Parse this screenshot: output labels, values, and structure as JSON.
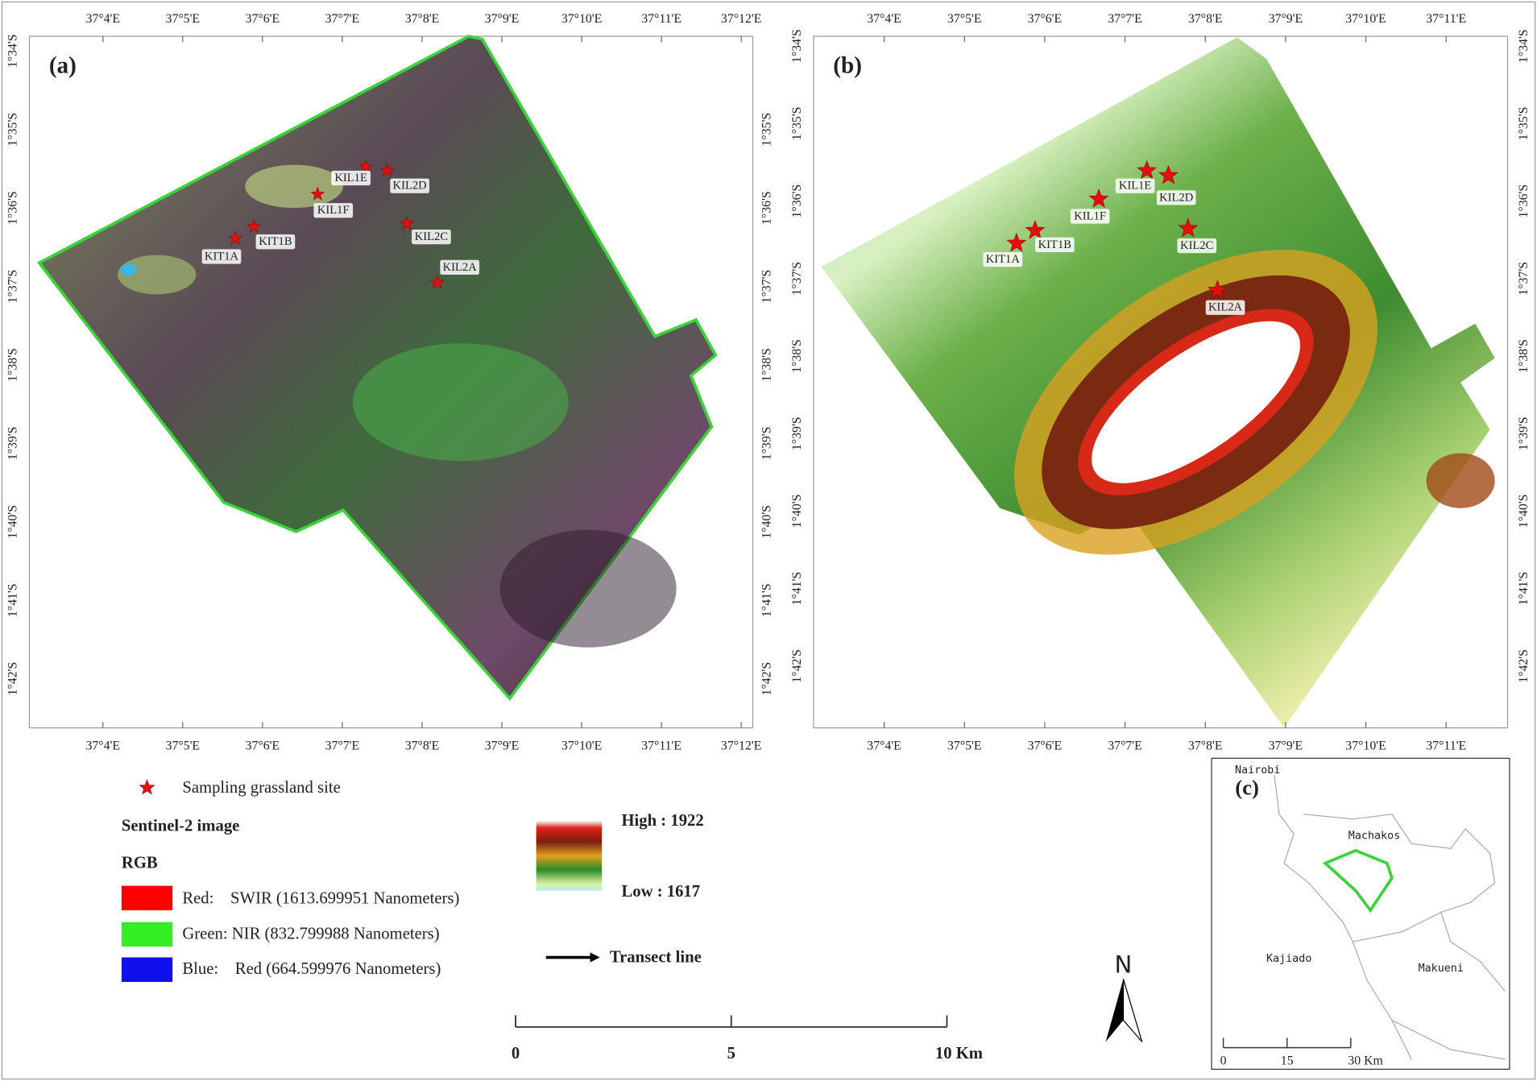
{
  "panels": [
    {
      "label": "(a)",
      "lon_ticks": [
        "37°4'E",
        "37°5'E",
        "37°6'E",
        "37°7'E",
        "37°8'E",
        "37°9'E",
        "37°10'E",
        "37°11'E",
        "37°12'E"
      ],
      "lat_ticks_left": [
        "1°34'S",
        "1°35'S",
        "1°36'S",
        "1°37'S",
        "1°38'S",
        "1°39'S",
        "1°40'S",
        "1°41'S",
        "1°42'S"
      ],
      "lat_ticks_right": [
        "1°35'S",
        "1°36'S",
        "1°37'S",
        "1°38'S",
        "1°39'S",
        "1°40'S",
        "1°41'S",
        "1°42'S"
      ]
    },
    {
      "label": "(b)",
      "lon_ticks": [
        "37°4'E",
        "37°5'E",
        "37°6'E",
        "37°7'E",
        "37°8'E",
        "37°9'E",
        "37°10'E",
        "37°11'E"
      ],
      "lat_ticks_left": [
        "1°34'S",
        "1°35'S",
        "1°36'S",
        "1°37'S",
        "1°38'S",
        "1°39'S",
        "1°40'S",
        "1°41'S",
        "1°42'S"
      ],
      "lat_ticks_right": [
        "1°34'S",
        "1°35'S",
        "1°36'S",
        "1°37'S",
        "1°38'S",
        "1°39'S",
        "1°40'S",
        "1°41'S",
        "1°42'S"
      ]
    }
  ],
  "sites": [
    "KIT1A",
    "KIT1B",
    "KIL1F",
    "KIL1E",
    "KIL2D",
    "KIL2C",
    "KIL2A"
  ],
  "legend": {
    "site": "Sampling grassland site",
    "title": "Sentinel-2 image",
    "subtitle": "RGB",
    "bands": [
      "Red:    SWIR (1613.699951 Nanometers)",
      "Green: NIR (832.799988 Nanometers)",
      "Blue:    Red (664.599976 Nanometers)"
    ],
    "elevation_high": "High : 1922",
    "elevation_low": "Low : 1617",
    "transect": "Transect line"
  },
  "scale_bar": [
    "0",
    "5",
    "10 Km"
  ],
  "north": "N",
  "inset": {
    "label": "(c)",
    "places": [
      "Nairobi",
      "Machakos",
      "Kajiado",
      "Makueni"
    ],
    "scale_bar": [
      "0",
      "15",
      "30 Km"
    ]
  }
}
